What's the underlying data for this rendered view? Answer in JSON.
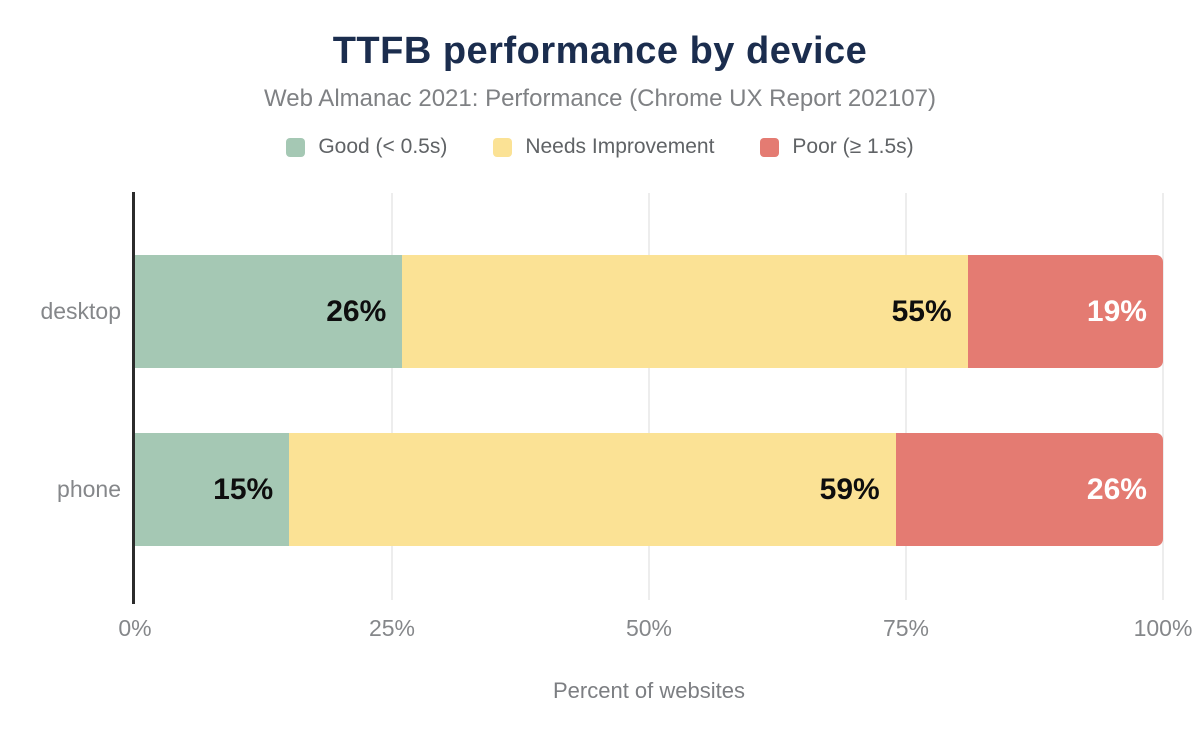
{
  "header": {
    "title": "TTFB performance by device",
    "subtitle": "Web Almanac 2021: Performance (Chrome UX Report 202107)"
  },
  "chart_data": {
    "type": "bar",
    "orientation": "horizontal",
    "stacked": true,
    "title": "TTFB performance by device",
    "subtitle": "Web Almanac 2021: Performance (Chrome UX Report 202107)",
    "categories": [
      "desktop",
      "phone"
    ],
    "series": [
      {
        "name": "Good (< 0.5s)",
        "values": [
          26,
          15
        ],
        "color": "#a5c8b4",
        "label_color": "#0e0e0e"
      },
      {
        "name": "Needs Improvement",
        "values": [
          55,
          59
        ],
        "color": "#fbe295",
        "label_color": "#0e0e0e"
      },
      {
        "name": "Poor (≥ 1.5s)",
        "values": [
          19,
          26
        ],
        "color": "#e47b72",
        "label_color": "#ffffff"
      }
    ],
    "value_suffix": "%",
    "xlabel": "Percent of websites",
    "xticks": [
      {
        "label": "0%",
        "value": 0
      },
      {
        "label": "25%",
        "value": 25
      },
      {
        "label": "50%",
        "value": 50
      },
      {
        "label": "75%",
        "value": 75
      },
      {
        "label": "100%",
        "value": 100
      }
    ],
    "xlim": [
      0,
      100
    ],
    "grid": true,
    "legend_position": "top"
  },
  "colors": {
    "title": "#1b2d4e",
    "subtitle": "#7f8184",
    "axis_text": "#85878a",
    "axis_line": "#2b2b2b",
    "gridline": "#ededed",
    "background": "#ffffff"
  }
}
